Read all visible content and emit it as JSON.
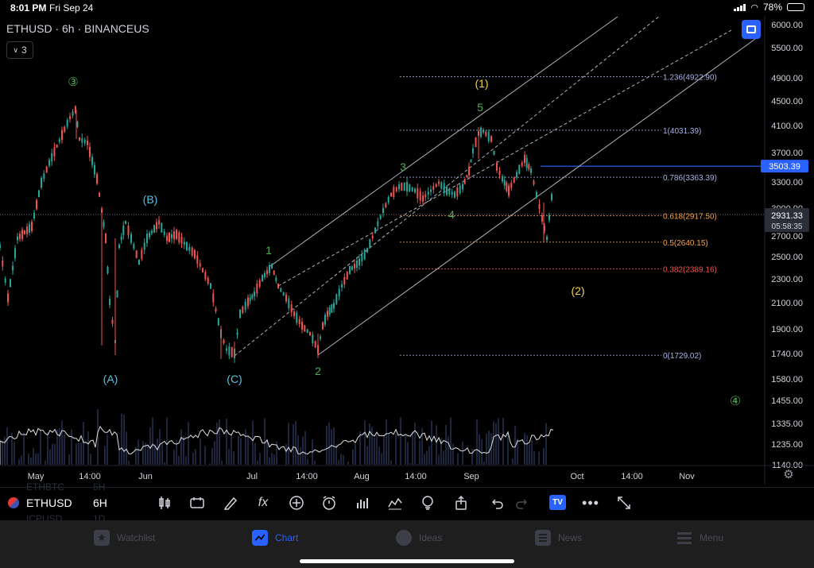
{
  "status_bar": {
    "time": "8:01 PM",
    "date": "Fri Sep 24",
    "battery": "78%"
  },
  "chart_header": {
    "title": "ETHUSD · 6h · BINANCEUS",
    "collapse_count": "3"
  },
  "colors": {
    "up": "#26a69a",
    "down": "#ef5350",
    "accent": "#2962ff",
    "green_label": "#4caf50",
    "blue_label": "#5bc0de",
    "yellow_label": "#f0d34a",
    "fib": "#a9b4e3",
    "fib_orange": "#f7a44a",
    "fib_red": "#ef5350",
    "channel": "#b0b3bd"
  },
  "price_axis": {
    "ticks": [
      "6000.00",
      "5500.00",
      "4900.00",
      "4500.00",
      "4100.00",
      "3700.00",
      "3300.00",
      "3000.00",
      "2700.00",
      "2500.00",
      "2300.00",
      "2100.00",
      "1900.00",
      "1740.00",
      "1580.00",
      "1455.00",
      "1335.00",
      "1235.00",
      "1140.00"
    ],
    "blue_line_price": "3503.39",
    "current_price": "2931.33",
    "countdown": "05:58:35"
  },
  "time_axis": [
    "May",
    "14:00",
    "Jun",
    "Jul",
    "14:00",
    "Aug",
    "14:00",
    "Sep",
    "Oct",
    "14:00",
    "Nov"
  ],
  "fib_levels": [
    {
      "label": "1.236(4922.90)",
      "ratio": 1.236,
      "price": 4922.9
    },
    {
      "label": "1(4031.39)",
      "ratio": 1,
      "price": 4031.39
    },
    {
      "label": "0.786(3363.39)",
      "ratio": 0.786,
      "price": 3363.39
    },
    {
      "label": "0.618(2917.50)",
      "ratio": 0.618,
      "price": 2917.5
    },
    {
      "label": "0.5(2640.15)",
      "ratio": 0.5,
      "price": 2640.15
    },
    {
      "label": "0.382(2389.16)",
      "ratio": 0.382,
      "price": 2389.16
    },
    {
      "label": "0(1729.02)",
      "ratio": 0,
      "price": 1729.02
    }
  ],
  "wave_labels": [
    {
      "text": "③",
      "color": "green"
    },
    {
      "text": "(B)",
      "color": "blue"
    },
    {
      "text": "(A)",
      "color": "blue"
    },
    {
      "text": "(C)",
      "color": "blue"
    },
    {
      "text": "1",
      "color": "green"
    },
    {
      "text": "2",
      "color": "green"
    },
    {
      "text": "3",
      "color": "green"
    },
    {
      "text": "4",
      "color": "green"
    },
    {
      "text": "5",
      "color": "green"
    },
    {
      "text": "(1)",
      "color": "yellow"
    },
    {
      "text": "(2)",
      "color": "yellow"
    },
    {
      "text": "④",
      "color": "green"
    }
  ],
  "toolbar": {
    "symbol": "ETHUSD",
    "interval": "6H",
    "ghost_above": [
      "ETHBTC",
      "5H"
    ],
    "ghost_below": [
      "ICPUSD",
      "1D"
    ],
    "tools": [
      "indicators-icon",
      "replay-icon",
      "draw-icon",
      "function-icon",
      "add-icon",
      "alert-icon",
      "bar-chart-icon",
      "compare-icon",
      "idea-icon",
      "share-icon",
      "undo-icon",
      "redo-icon",
      "tradingview-icon",
      "more-icon",
      "fullscreen-icon"
    ],
    "tv_label": "TV"
  },
  "tabs": [
    {
      "label": "Watchlist",
      "icon": "star-icon"
    },
    {
      "label": "Chart",
      "icon": "chart-icon"
    },
    {
      "label": "Ideas",
      "icon": "bulb-icon"
    },
    {
      "label": "News",
      "icon": "news-icon"
    },
    {
      "label": "Menu",
      "icon": "menu-icon"
    }
  ]
}
